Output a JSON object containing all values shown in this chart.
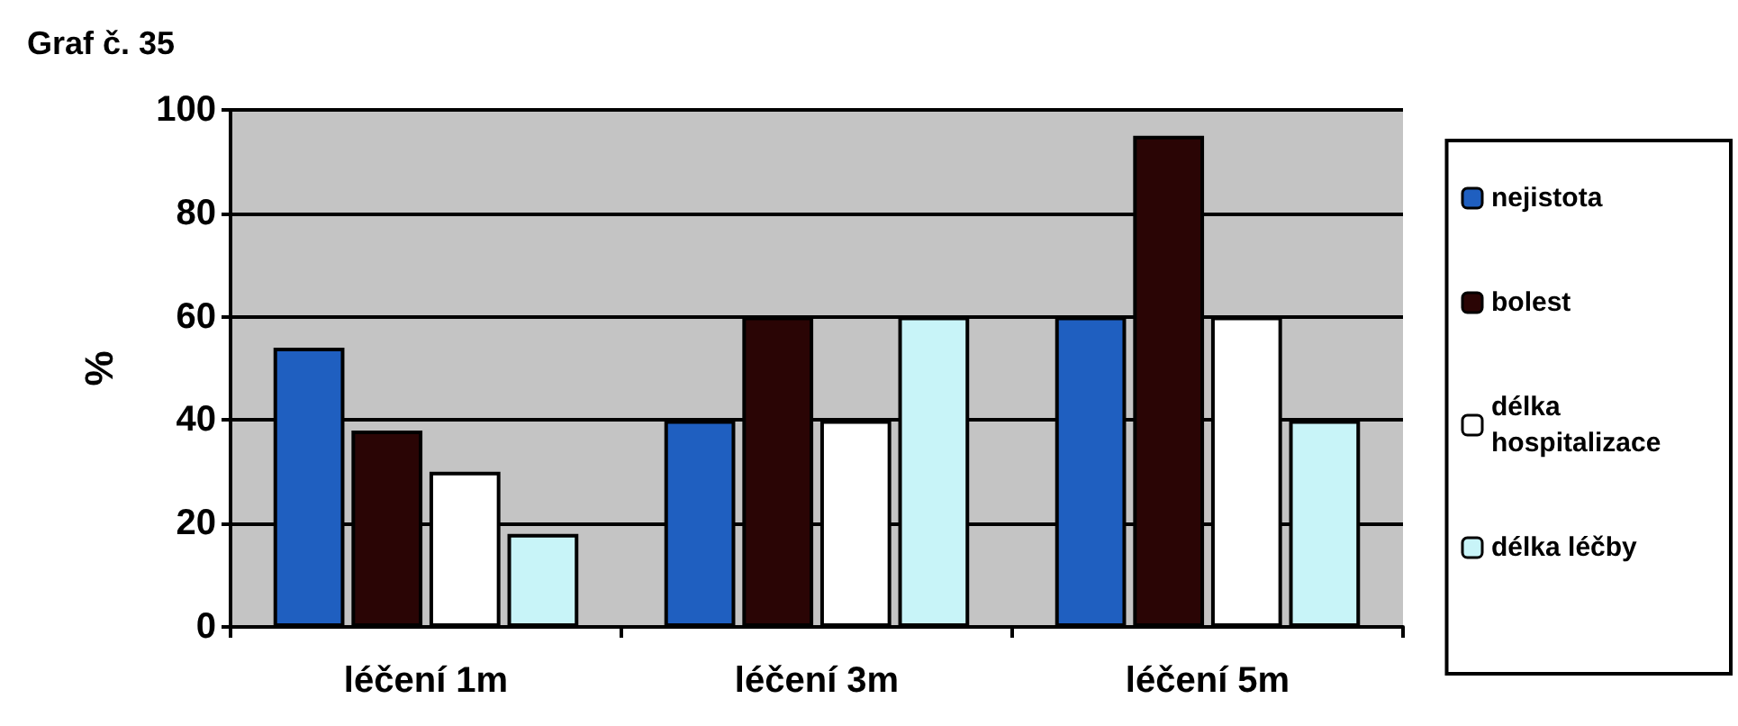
{
  "chart_data": {
    "type": "bar",
    "title": "Graf č. 35",
    "ylabel": "%",
    "categories": [
      "léčení 1m",
      "léčení 3m",
      "léčení 5m"
    ],
    "series": [
      {
        "name": "nejistota",
        "color": "#1f5fc0",
        "values": [
          54,
          40,
          60
        ]
      },
      {
        "name": "bolest",
        "color": "#2a0505",
        "values": [
          38,
          60,
          95
        ]
      },
      {
        "name": "délka hospitalizace",
        "color": "#ffffff",
        "values": [
          30,
          40,
          60
        ]
      },
      {
        "name": "délka léčby",
        "color": "#c8f4f8",
        "values": [
          18,
          60,
          40
        ]
      }
    ],
    "ylim": [
      0,
      100
    ],
    "yticks": [
      0,
      20,
      40,
      60,
      80,
      100
    ],
    "grid": "y",
    "legend": "right"
  }
}
